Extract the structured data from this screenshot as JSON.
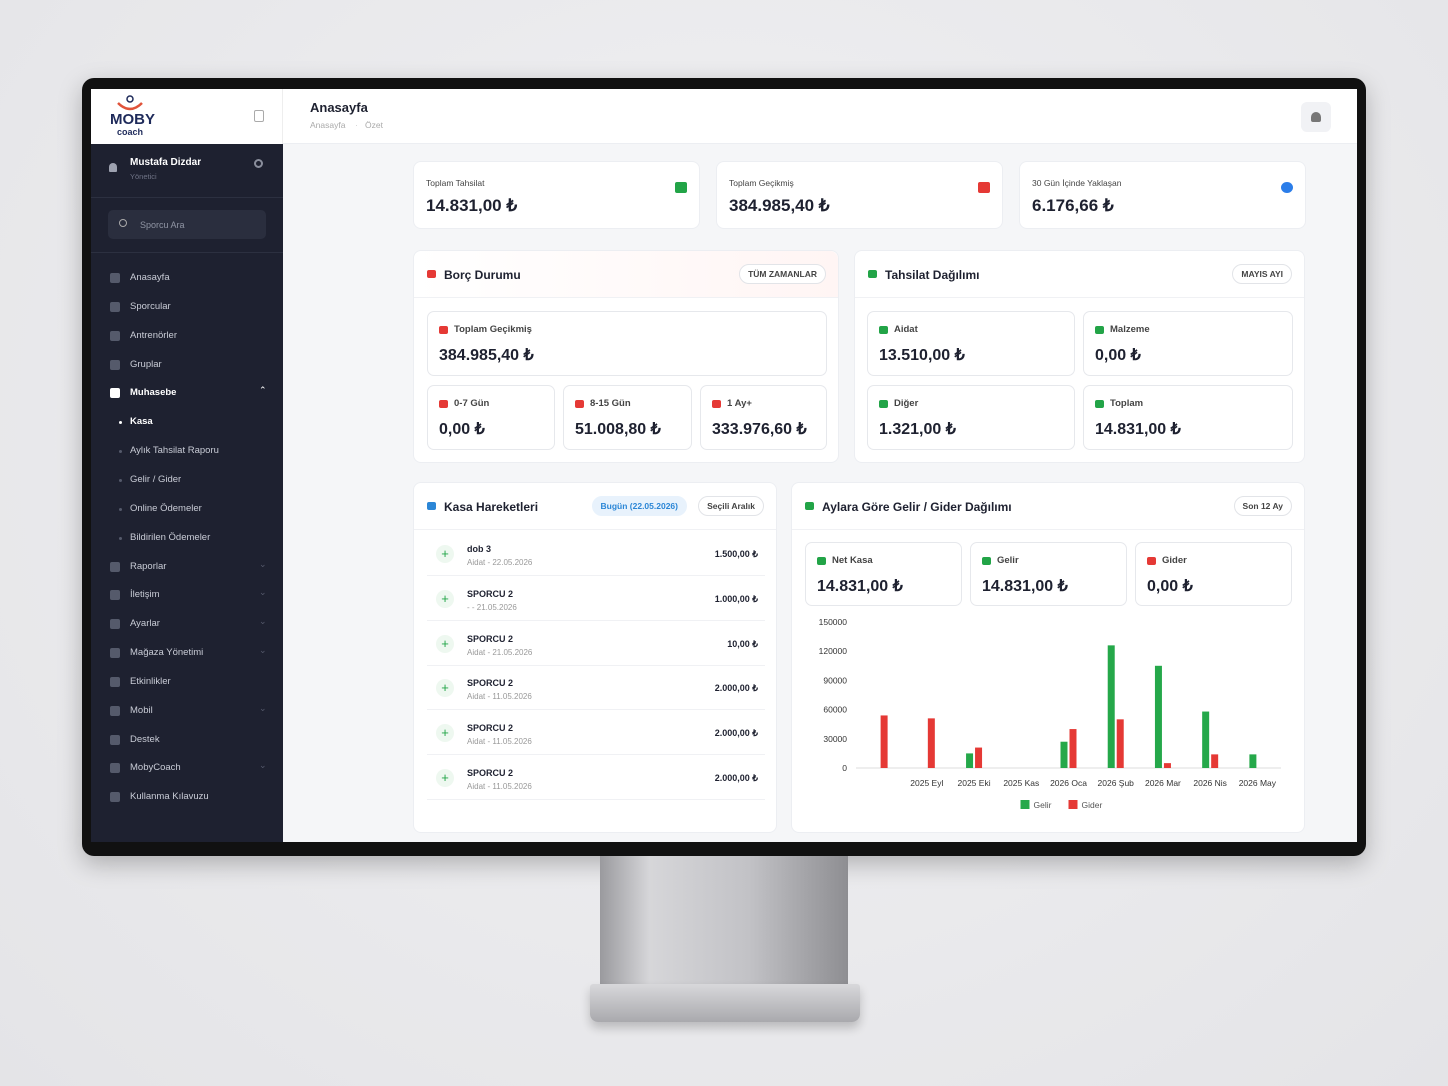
{
  "header": {
    "title": "Anasayfa",
    "breadcrumb": [
      "Anasayfa",
      "Özet"
    ]
  },
  "sidebar": {
    "brand": [
      "MOBY",
      "coach"
    ],
    "user": {
      "name": "Mustafa Dizdar",
      "role": "Yönetici"
    },
    "search": "Sporcu Ara",
    "menu": [
      "Anasayfa",
      "Sporcular",
      "Antrenörler",
      "Gruplar",
      "Muhasebe"
    ],
    "submenu": [
      "Kasa",
      "Aylık Tahsilat Raporu",
      "Gelir / Gider",
      "Online Ödemeler",
      "Bildirilen Ödemeler"
    ],
    "menu2": [
      "Raporlar",
      "İletişim",
      "Ayarlar",
      "Mağaza Yönetimi",
      "Etkinlikler",
      "Mobil",
      "Destek",
      "MobyCoach",
      "Kullanma Kılavuzu"
    ]
  },
  "stats": [
    {
      "label": "Toplam Tahsilat",
      "value": "14.831,00 ₺"
    },
    {
      "label": "Toplam Geçikmiş",
      "value": "384.985,40 ₺"
    },
    {
      "label": "30 Gün İçinde Yaklaşan",
      "value": "6.176,66 ₺"
    }
  ],
  "debt": {
    "title": "Borç Durumu",
    "badge": "TÜM ZAMANLAR",
    "total": {
      "label": "Toplam Geçikmiş",
      "value": "384.985,40 ₺"
    },
    "items": [
      {
        "label": "0-7 Gün",
        "value": "0,00 ₺"
      },
      {
        "label": "8-15 Gün",
        "value": "51.008,80 ₺"
      },
      {
        "label": "1 Ay+",
        "value": "333.976,60 ₺"
      }
    ]
  },
  "collection": {
    "title": "Tahsilat Dağılımı",
    "badge": "MAYIS AYI",
    "items": [
      {
        "label": "Aidat",
        "value": "13.510,00 ₺"
      },
      {
        "label": "Malzeme",
        "value": "0,00 ₺"
      },
      {
        "label": "Diğer",
        "value": "1.321,00 ₺"
      },
      {
        "label": "Toplam",
        "value": "14.831,00 ₺"
      }
    ]
  },
  "cash": {
    "title": "Kasa Hareketleri",
    "badges": [
      "Bugün (22.05.2026)",
      "Seçili Aralık"
    ],
    "rows": [
      {
        "name": "dob 3",
        "detail": "Aidat - 22.05.2026",
        "amount": "1.500,00 ₺"
      },
      {
        "name": "SPORCU 2",
        "detail": "- - 21.05.2026",
        "amount": "1.000,00 ₺"
      },
      {
        "name": "SPORCU 2",
        "detail": "Aidat - 21.05.2026",
        "amount": "10,00 ₺"
      },
      {
        "name": "SPORCU 2",
        "detail": "Aidat - 11.05.2026",
        "amount": "2.000,00 ₺"
      },
      {
        "name": "SPORCU 2",
        "detail": "Aidat - 11.05.2026",
        "amount": "2.000,00 ₺"
      },
      {
        "name": "SPORCU 2",
        "detail": "Aidat - 11.05.2026",
        "amount": "2.000,00 ₺"
      }
    ]
  },
  "income": {
    "title": "Aylara Göre Gelir / Gider Dağılımı",
    "badge": "Son 12 Ay",
    "items": [
      {
        "label": "Net Kasa",
        "value": "14.831,00 ₺"
      },
      {
        "label": "Gelir",
        "value": "14.831,00 ₺"
      },
      {
        "label": "Gider",
        "value": "0,00 ₺"
      }
    ]
  },
  "chart_data": {
    "type": "bar",
    "categories": [
      null,
      "2025 Eyl",
      "2025 Eki",
      "2025 Kas",
      "2026 Oca",
      "2026 Şub",
      "2026 Mar",
      "2026 Nis",
      "2026 May"
    ],
    "series": [
      {
        "name": "Gelir",
        "color": "#25a84a",
        "values": [
          0,
          0,
          15000,
          0,
          27000,
          126000,
          105000,
          58000,
          14000
        ]
      },
      {
        "name": "Gider",
        "color": "#e53935",
        "values": [
          54000,
          51000,
          21000,
          0,
          40000,
          50000,
          5000,
          14000,
          0
        ]
      }
    ],
    "ylim": [
      0,
      150000
    ],
    "yticks": [
      0,
      30000,
      60000,
      90000,
      120000,
      150000
    ],
    "grid": false,
    "legend": "bottom"
  }
}
